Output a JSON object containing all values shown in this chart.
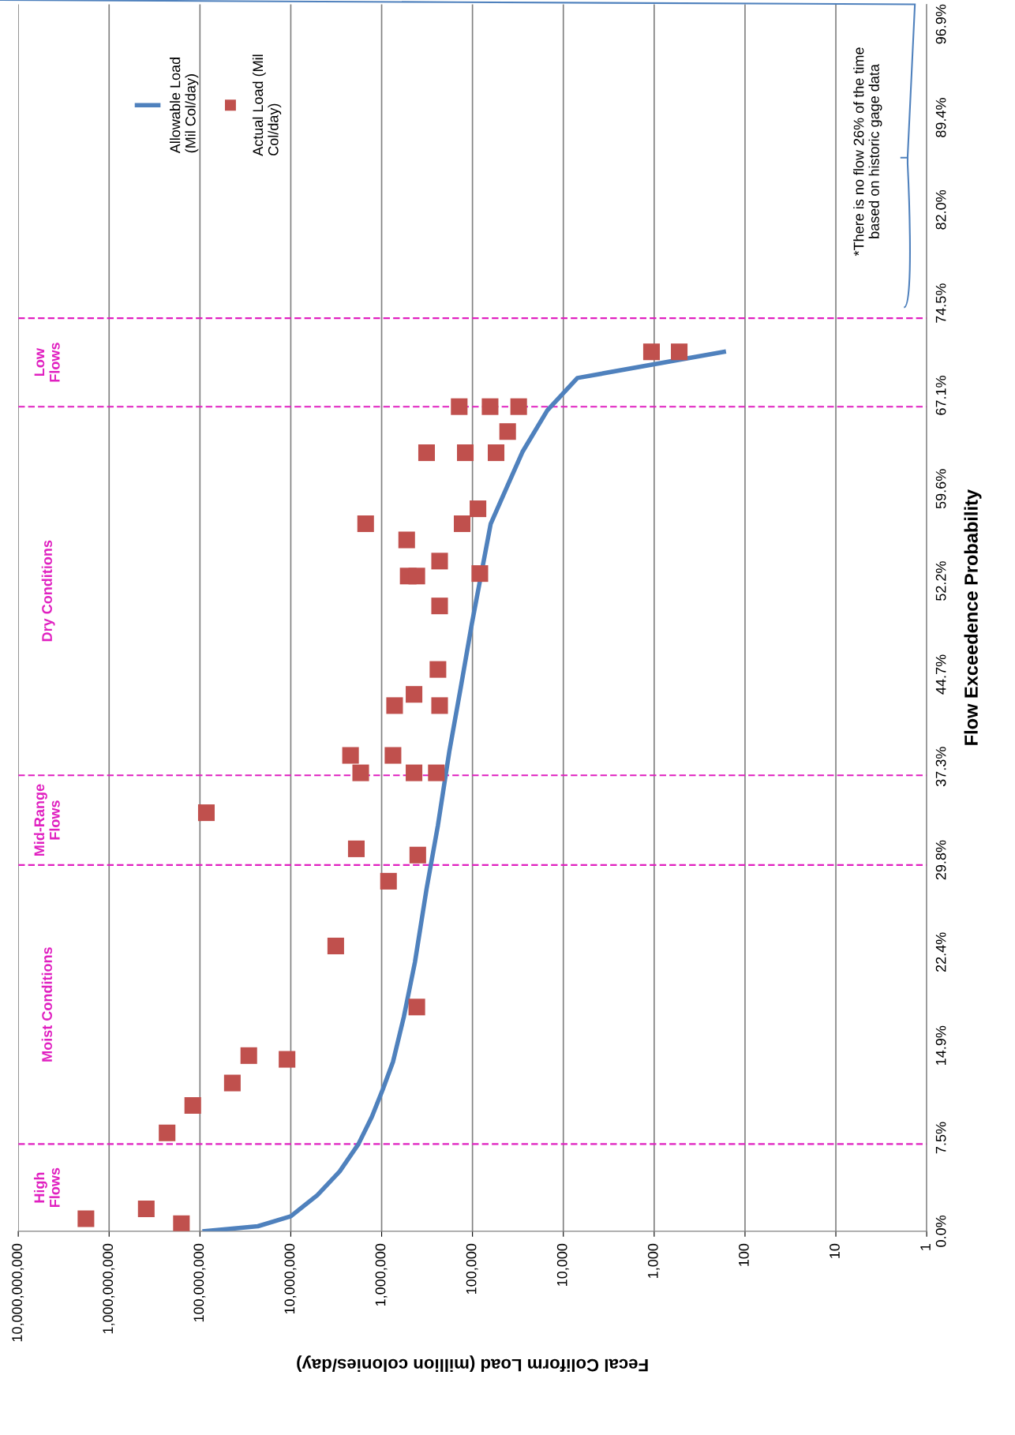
{
  "chart_data": {
    "type": "line",
    "xlabel": "Fecal Coliform Load (million colonies/day)",
    "ylabel": "Flow Exceedence Probability",
    "log": "x",
    "xlim": [
      10000000000,
      1
    ],
    "xticks": [
      {
        "value": 10000000000,
        "label": "10,000,000,000"
      },
      {
        "value": 1000000000,
        "label": "1,000,000,000"
      },
      {
        "value": 100000000,
        "label": "100,000,000"
      },
      {
        "value": 10000000,
        "label": "10,000,000"
      },
      {
        "value": 1000000,
        "label": "1,000,000"
      },
      {
        "value": 100000,
        "label": "100,000"
      },
      {
        "value": 10000,
        "label": "10,000"
      },
      {
        "value": 1000,
        "label": "1,000"
      },
      100,
      10,
      1
    ],
    "ylim": [
      0,
      98.5
    ],
    "yticks": [
      {
        "value": 0,
        "label": "0.0%"
      },
      {
        "value": 7.5,
        "label": "7.5%"
      },
      {
        "value": 14.9,
        "label": "14.9%"
      },
      {
        "value": 22.4,
        "label": "22.4%"
      },
      {
        "value": 29.8,
        "label": "29.8%"
      },
      {
        "value": 37.3,
        "label": "37.3%"
      },
      {
        "value": 44.7,
        "label": "44.7%"
      },
      {
        "value": 52.2,
        "label": "52.2%"
      },
      {
        "value": 59.6,
        "label": "59.6%"
      },
      {
        "value": 67.1,
        "label": "67.1%"
      },
      {
        "value": 74.5,
        "label": "74.5%"
      },
      {
        "value": 82.0,
        "label": "82.0%"
      },
      {
        "value": 89.4,
        "label": "89.4%"
      },
      {
        "value": 96.9,
        "label": "96.9%"
      }
    ],
    "grid": "x",
    "legend": "top",
    "series": [
      {
        "name": "Allowable Load\n(Mil Col/day)",
        "color": "#4f81bd",
        "marker": "none",
        "line_style": "solid",
        "x": [
          89000000,
          23000000,
          10000000,
          5100000,
          2900000,
          1800000,
          1280000,
          970000,
          750000,
          570000,
          430000,
          320000,
          240000,
          180000,
          135000,
          102000,
          63000,
          42000,
          28000,
          15000,
          7000,
          171
        ],
        "values": [
          0,
          0.4,
          1.2,
          2.9,
          4.8,
          7.0,
          9.2,
          11.4,
          13.6,
          17.2,
          21.6,
          27.5,
          32.6,
          38.5,
          43.6,
          48.7,
          56.8,
          59.7,
          62.6,
          65.9,
          68.5,
          70.6
        ]
      },
      {
        "name": "Actual Load (Mil\nCol/day)",
        "type": "scatter",
        "color": "#c0504d",
        "marker": "square",
        "x": [
          1800000000,
          390000000,
          160000000,
          230000000,
          120000000,
          44000000,
          29000000,
          11000000,
          85000000,
          3200000,
          410000,
          840000,
          1900000,
          400000,
          2200000,
          1700000,
          750000,
          440000,
          250000,
          720000,
          440000,
          230000,
          240000,
          230000,
          510000,
          410000,
          83000,
          230000,
          530000,
          1500000,
          130000,
          87000,
          320000,
          120000,
          55000,
          41000,
          140000,
          64000,
          31000,
          1070,
          530
        ],
        "values": [
          1.0,
          1.8,
          0.6,
          7.9,
          10.1,
          11.9,
          14.1,
          13.8,
          33.6,
          22.9,
          18.0,
          28.1,
          30.7,
          30.2,
          38.2,
          36.8,
          38.2,
          36.8,
          36.8,
          42.2,
          43.1,
          42.2,
          45.1,
          50.2,
          52.6,
          52.6,
          52.8,
          53.8,
          55.5,
          56.8,
          56.8,
          58.0,
          62.5,
          62.5,
          62.5,
          64.2,
          66.2,
          66.2,
          66.2,
          70.6,
          70.6
        ]
      }
    ],
    "ref_lines": [
      {
        "axis": "y",
        "value": 7.0,
        "color": "#e020c0",
        "line_style": "dashed"
      },
      {
        "axis": "y",
        "value": 29.4,
        "color": "#e020c0",
        "line_style": "dashed"
      },
      {
        "axis": "y",
        "value": 36.6,
        "color": "#e020c0",
        "line_style": "dashed"
      },
      {
        "axis": "y",
        "value": 66.2,
        "color": "#e020c0",
        "line_style": "dashed"
      },
      {
        "axis": "y",
        "value": 73.3,
        "color": "#e020c0",
        "line_style": "dashed"
      }
    ],
    "annotations": [
      "High\nFlows",
      "Moist Conditions",
      "Mid-Range\nFlows",
      "Dry Conditions",
      "Low\nFlows",
      "*There is no flow 26% of the time\nbased on historic gage data"
    ]
  }
}
